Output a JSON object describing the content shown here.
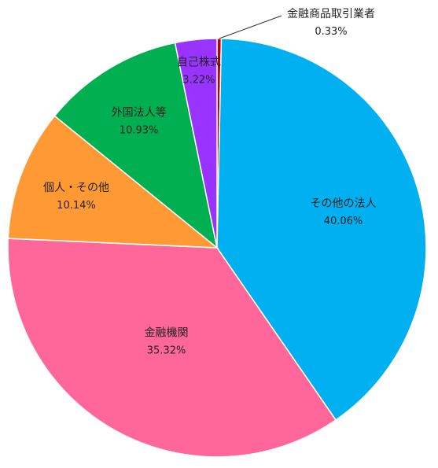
{
  "chart_data": {
    "type": "pie",
    "title": "",
    "start_angle_deg": 0,
    "direction": "clockwise",
    "slices": [
      {
        "name": "金融商品取引業者",
        "value": 0.33,
        "label": "0.33%",
        "color": "#C00000",
        "label_placement": "outside"
      },
      {
        "name": "その他の法人",
        "value": 40.06,
        "label": "40.06%",
        "color": "#00B0F0",
        "label_placement": "inside"
      },
      {
        "name": "金融機関",
        "value": 35.32,
        "label": "35.32%",
        "color": "#FF6699",
        "label_placement": "inside"
      },
      {
        "name": "個人・その他",
        "value": 10.14,
        "label": "10.14%",
        "color": "#FF9933",
        "label_placement": "inside"
      },
      {
        "name": "外国法人等",
        "value": 10.93,
        "label": "10.93%",
        "color": "#00B050",
        "label_placement": "inside"
      },
      {
        "name": "自己株式",
        "value": 3.22,
        "label": "3.22%",
        "color": "#9933FF",
        "label_placement": "inside"
      }
    ]
  }
}
